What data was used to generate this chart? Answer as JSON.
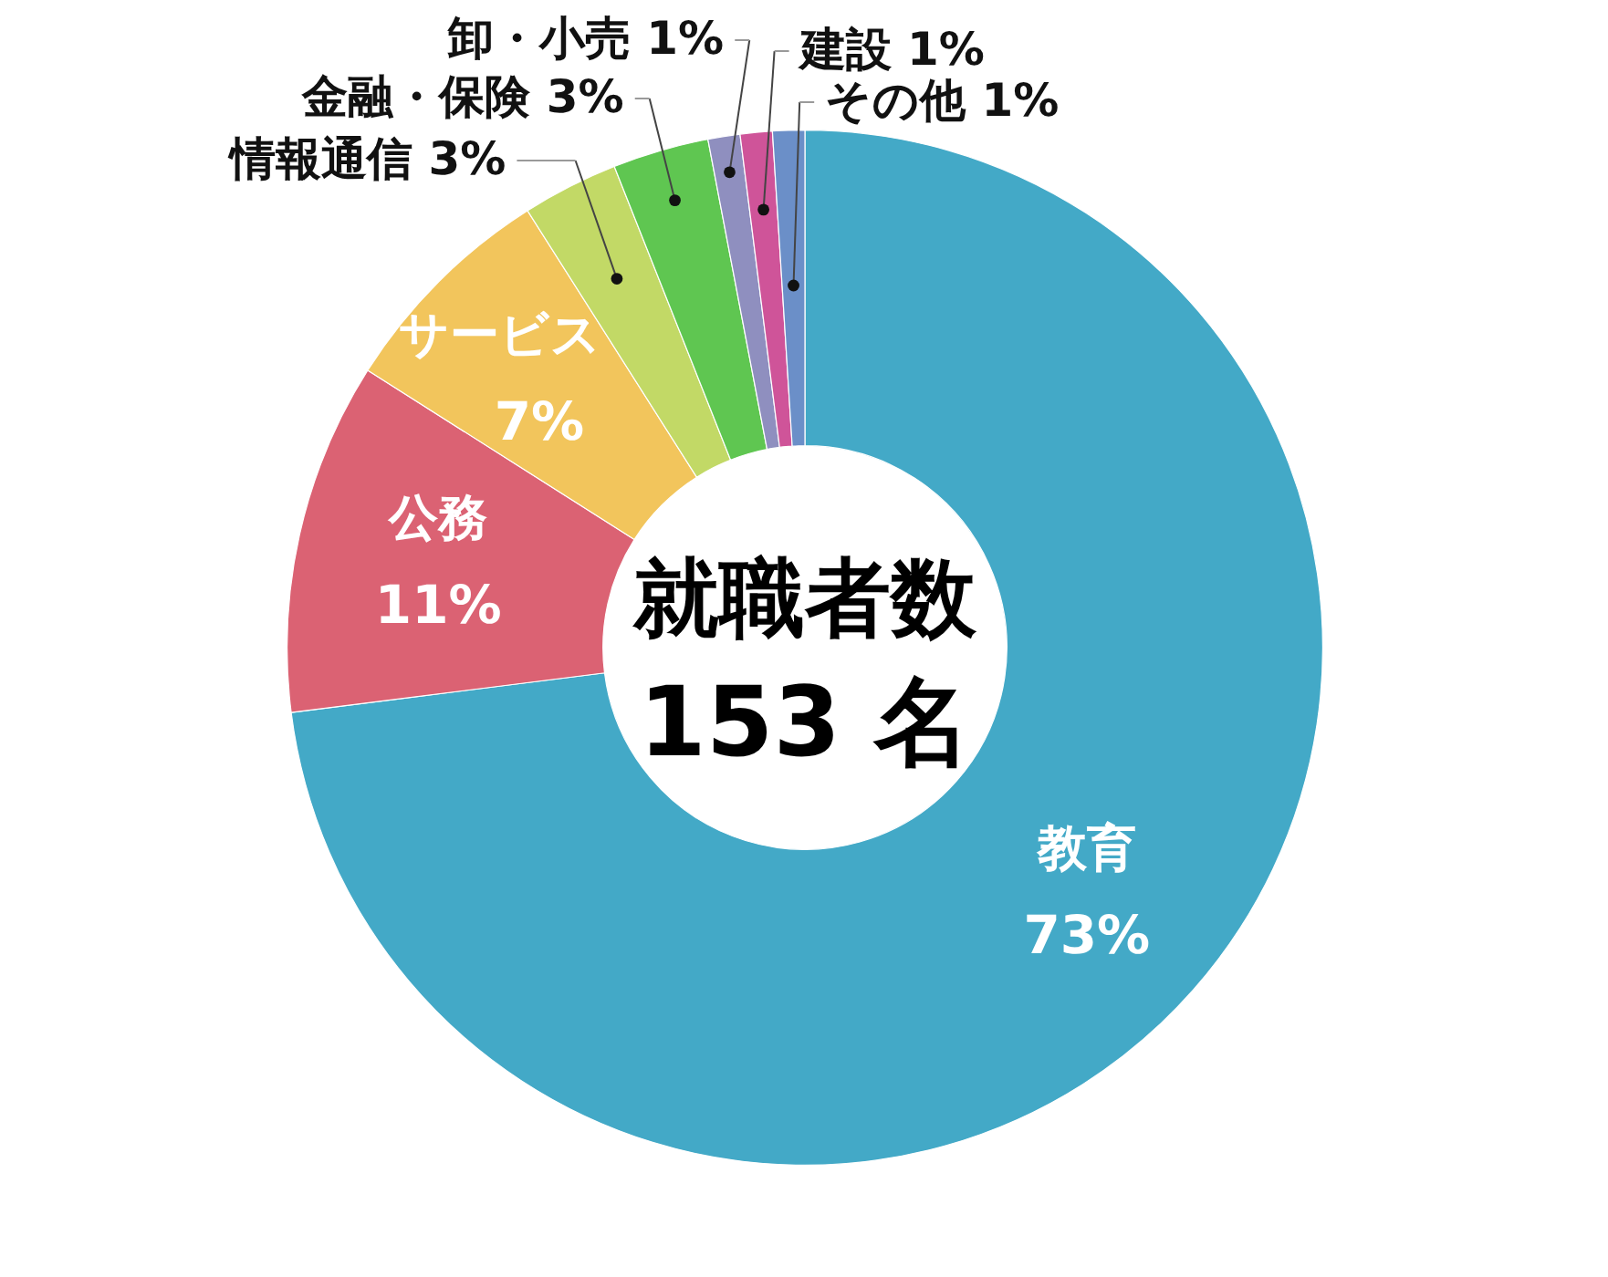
{
  "chart_data": {
    "type": "donut",
    "categories": [
      "教育",
      "公務",
      "サービス",
      "情報通信",
      "金融・保険",
      "卸・小売",
      "建設",
      "その他"
    ],
    "values": [
      73,
      11,
      7,
      3,
      3,
      1,
      1,
      1
    ],
    "colors": [
      "#43a9c7",
      "#db6273",
      "#f2c55c",
      "#c2d966",
      "#5fc651",
      "#8f8fbf",
      "#cf5499",
      "#6b8fc8"
    ],
    "value_labels": [
      "73%",
      "11%",
      "7%",
      "3%",
      "3%",
      "1%",
      "1%",
      "1%"
    ],
    "annotations": [
      "就職者数",
      "153 名"
    ]
  }
}
